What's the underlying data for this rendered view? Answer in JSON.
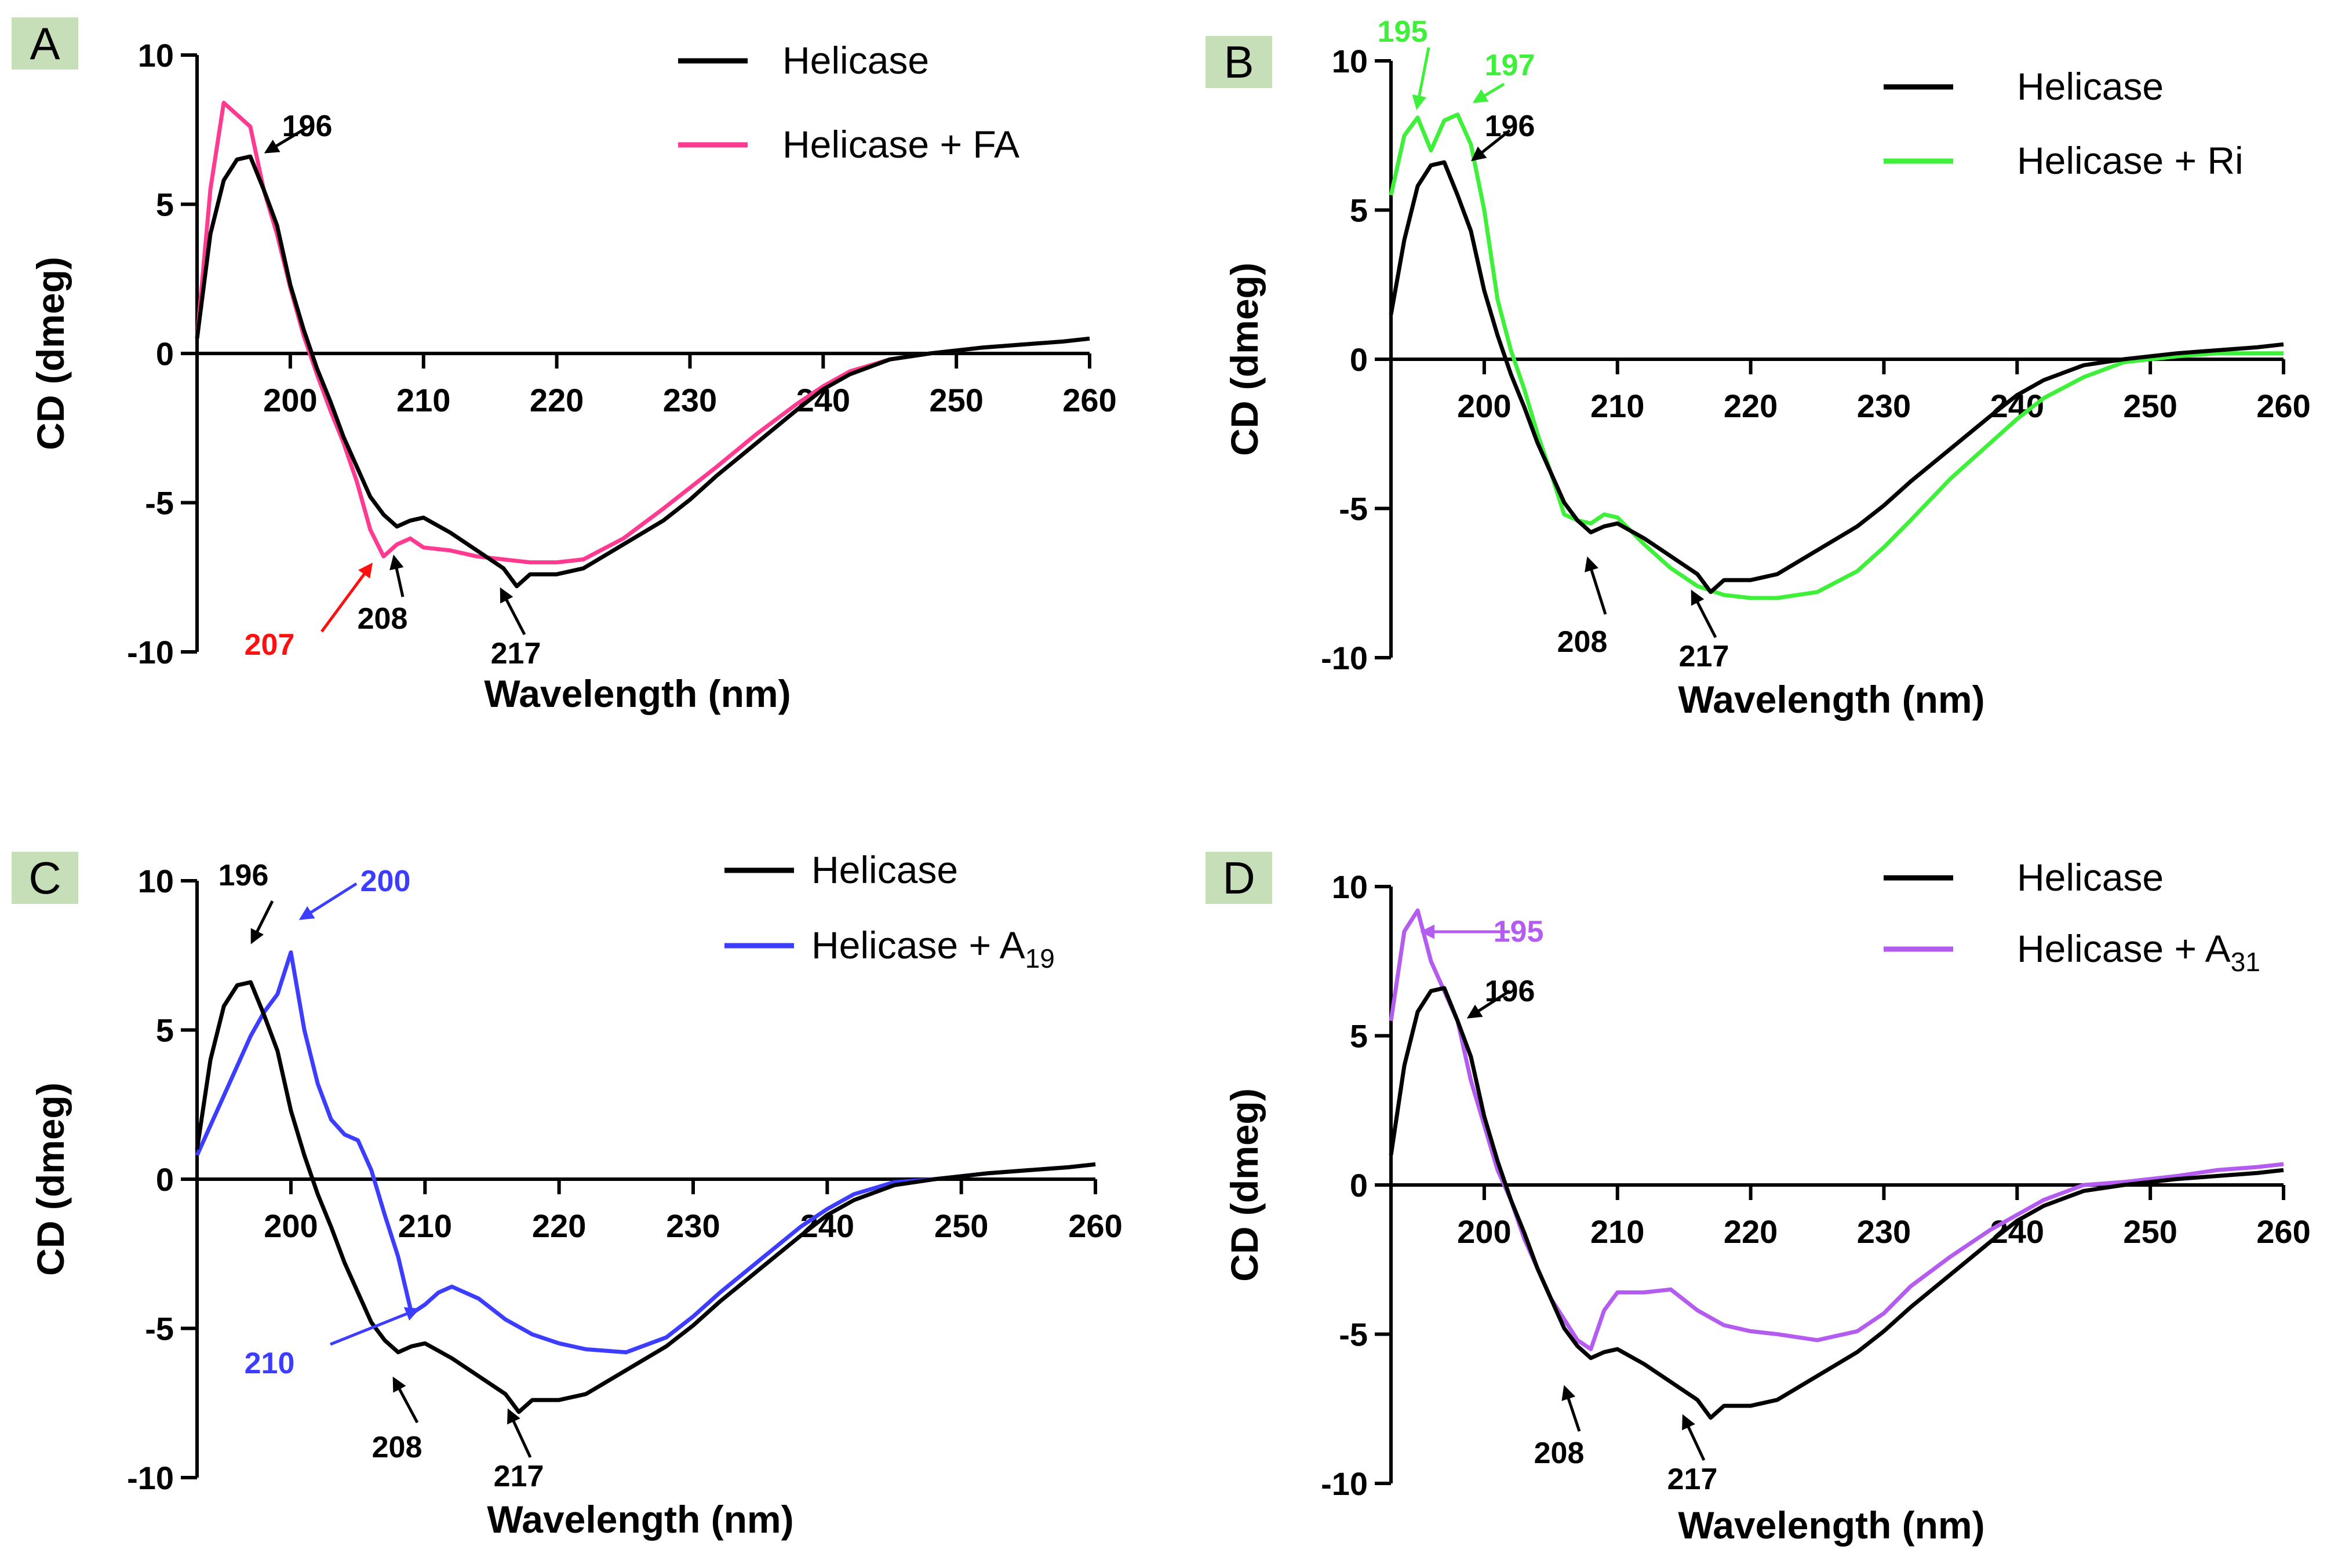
{
  "figure": {
    "colors": {
      "base": "#000000",
      "FA": "#ff3b91",
      "Ri": "#3ef03a",
      "A19": "#3d3dff",
      "A31": "#b45cf0",
      "label_bg": "#c6dfb9",
      "red": "#ff1010"
    }
  },
  "chart_data": [
    {
      "panel": "A",
      "type": "line",
      "xlabel": "Wavelength (nm)",
      "ylabel": "CD (dmeg)",
      "xlim": [
        193,
        260
      ],
      "ylim": [
        -10,
        10
      ],
      "xticks": [
        "200",
        "210",
        "220",
        "230",
        "240",
        "250",
        "260"
      ],
      "yticks": [
        "10",
        "5",
        "0",
        "-5",
        "-10"
      ],
      "series": [
        {
          "name": "Helicase",
          "color": "#000000",
          "x": [
            193,
            194,
            195,
            196,
            197,
            198,
            199,
            200,
            201,
            202,
            203,
            204,
            205,
            206,
            207,
            208,
            209,
            210,
            212,
            214,
            216,
            217,
            218,
            220,
            222,
            225,
            228,
            230,
            232,
            235,
            238,
            240,
            242,
            245,
            248,
            250,
            252,
            255,
            258,
            260
          ],
          "y": [
            0.5,
            4.0,
            5.8,
            6.5,
            6.6,
            5.5,
            4.3,
            2.3,
            0.8,
            -0.5,
            -1.6,
            -2.8,
            -3.8,
            -4.8,
            -5.4,
            -5.8,
            -5.6,
            -5.5,
            -6.0,
            -6.6,
            -7.2,
            -7.8,
            -7.4,
            -7.4,
            -7.2,
            -6.4,
            -5.6,
            -4.9,
            -4.1,
            -3.0,
            -1.9,
            -1.2,
            -0.7,
            -0.2,
            0.0,
            0.1,
            0.2,
            0.3,
            0.4,
            0.5
          ]
        },
        {
          "name": "Helicase + FA",
          "color": "#ff3b91",
          "x": [
            193,
            194,
            195,
            196,
            197,
            198,
            199,
            200,
            201,
            202,
            203,
            204,
            205,
            206,
            207,
            208,
            209,
            210,
            212,
            214,
            216,
            218,
            220,
            222,
            225,
            228,
            230,
            232,
            235,
            238,
            240,
            242,
            245,
            248,
            250,
            252,
            255,
            258,
            260
          ],
          "y": [
            0.5,
            5.5,
            8.4,
            8.0,
            7.6,
            5.5,
            4.0,
            2.2,
            0.6,
            -0.7,
            -1.9,
            -3.0,
            -4.3,
            -5.9,
            -6.8,
            -6.4,
            -6.2,
            -6.5,
            -6.6,
            -6.8,
            -6.9,
            -7.0,
            -7.0,
            -6.9,
            -6.2,
            -5.2,
            -4.5,
            -3.8,
            -2.7,
            -1.7,
            -1.1,
            -0.6,
            -0.2,
            0.0,
            0.1,
            0.2,
            0.3,
            0.4,
            0.5
          ]
        }
      ],
      "legend": [
        "Helicase",
        "Helicase + FA"
      ],
      "annotations": [
        {
          "text": "196",
          "x": 196,
          "color": "#000000"
        },
        {
          "text": "207",
          "x": 207,
          "color": "#ff1010"
        },
        {
          "text": "208",
          "x": 208,
          "color": "#000000"
        },
        {
          "text": "217",
          "x": 217,
          "color": "#000000"
        }
      ]
    },
    {
      "panel": "B",
      "type": "line",
      "xlabel": "Wavelength (nm)",
      "ylabel": "CD (dmeg)",
      "xlim": [
        193,
        260
      ],
      "ylim": [
        -10,
        10
      ],
      "xticks": [
        "200",
        "210",
        "220",
        "230",
        "240",
        "250",
        "260"
      ],
      "yticks": [
        "10",
        "5",
        "0",
        "-5",
        "-10"
      ],
      "series": [
        {
          "name": "Helicase",
          "color": "#000000",
          "x": [
            193,
            194,
            195,
            196,
            197,
            198,
            199,
            200,
            201,
            202,
            203,
            204,
            205,
            206,
            207,
            208,
            209,
            210,
            212,
            214,
            216,
            217,
            218,
            220,
            222,
            225,
            228,
            230,
            232,
            235,
            238,
            240,
            242,
            245,
            248,
            250,
            252,
            255,
            258,
            260
          ],
          "y": [
            1.5,
            4.0,
            5.8,
            6.5,
            6.6,
            5.5,
            4.3,
            2.3,
            0.8,
            -0.5,
            -1.6,
            -2.8,
            -3.8,
            -4.8,
            -5.4,
            -5.8,
            -5.6,
            -5.5,
            -6.0,
            -6.6,
            -7.2,
            -7.8,
            -7.4,
            -7.4,
            -7.2,
            -6.4,
            -5.6,
            -4.9,
            -4.1,
            -3.0,
            -1.9,
            -1.2,
            -0.7,
            -0.2,
            0.0,
            0.1,
            0.2,
            0.3,
            0.4,
            0.5
          ]
        },
        {
          "name": "Helicase + Ri",
          "color": "#3ef03a",
          "x": [
            193,
            194,
            195,
            196,
            197,
            198,
            199,
            200,
            201,
            202,
            203,
            204,
            205,
            206,
            207,
            208,
            209,
            210,
            212,
            214,
            216,
            218,
            220,
            222,
            225,
            228,
            230,
            232,
            235,
            238,
            240,
            242,
            245,
            248,
            250,
            252,
            255,
            258,
            260
          ],
          "y": [
            5.5,
            7.5,
            8.1,
            7.0,
            8.0,
            8.2,
            7.2,
            5.0,
            2.0,
            0.3,
            -1.0,
            -2.5,
            -3.8,
            -5.2,
            -5.4,
            -5.5,
            -5.2,
            -5.3,
            -6.2,
            -7.0,
            -7.6,
            -7.9,
            -8.0,
            -8.0,
            -7.8,
            -7.1,
            -6.3,
            -5.4,
            -4.0,
            -2.8,
            -2.0,
            -1.3,
            -0.6,
            -0.1,
            0.0,
            0.1,
            0.2,
            0.2,
            0.2
          ]
        }
      ],
      "legend": [
        "Helicase",
        "Helicase + Ri"
      ],
      "annotations": [
        {
          "text": "195",
          "x": 195,
          "color": "#3ef03a"
        },
        {
          "text": "197",
          "x": 197,
          "color": "#3ef03a"
        },
        {
          "text": "196",
          "x": 196,
          "color": "#000000"
        },
        {
          "text": "208",
          "x": 208,
          "color": "#000000"
        },
        {
          "text": "217",
          "x": 217,
          "color": "#000000"
        }
      ]
    },
    {
      "panel": "C",
      "type": "line",
      "xlabel": "Wavelength (nm)",
      "ylabel": "CD (dmeg)",
      "xlim": [
        193,
        260
      ],
      "ylim": [
        -10,
        10
      ],
      "xticks": [
        "200",
        "210",
        "220",
        "230",
        "240",
        "250",
        "260"
      ],
      "yticks": [
        "10",
        "5",
        "0",
        "-5",
        "-10"
      ],
      "series": [
        {
          "name": "Helicase",
          "color": "#000000",
          "x": [
            193,
            194,
            195,
            196,
            197,
            198,
            199,
            200,
            201,
            202,
            203,
            204,
            205,
            206,
            207,
            208,
            209,
            210,
            212,
            214,
            216,
            217,
            218,
            220,
            222,
            225,
            228,
            230,
            232,
            235,
            238,
            240,
            242,
            245,
            248,
            250,
            252,
            255,
            258,
            260
          ],
          "y": [
            1.0,
            4.0,
            5.8,
            6.5,
            6.6,
            5.5,
            4.3,
            2.3,
            0.8,
            -0.5,
            -1.6,
            -2.8,
            -3.8,
            -4.8,
            -5.4,
            -5.8,
            -5.6,
            -5.5,
            -6.0,
            -6.6,
            -7.2,
            -7.8,
            -7.4,
            -7.4,
            -7.2,
            -6.4,
            -5.6,
            -4.9,
            -4.1,
            -3.0,
            -1.9,
            -1.2,
            -0.7,
            -0.2,
            0.0,
            0.1,
            0.2,
            0.3,
            0.4,
            0.5
          ]
        },
        {
          "name": "Helicase + A19",
          "color": "#3d3dff",
          "x": [
            193,
            194,
            195,
            196,
            197,
            198,
            199,
            200,
            201,
            202,
            203,
            204,
            205,
            206,
            207,
            208,
            209,
            210,
            211,
            212,
            214,
            216,
            218,
            220,
            222,
            225,
            228,
            230,
            232,
            235,
            238,
            240,
            242,
            245,
            248,
            250,
            252,
            255,
            258,
            260
          ],
          "y": [
            0.8,
            1.8,
            2.8,
            3.8,
            4.8,
            5.6,
            6.2,
            7.6,
            5.0,
            3.2,
            2.0,
            1.5,
            1.3,
            0.3,
            -1.2,
            -2.6,
            -4.5,
            -4.2,
            -3.8,
            -3.6,
            -4.0,
            -4.7,
            -5.2,
            -5.5,
            -5.7,
            -5.8,
            -5.3,
            -4.6,
            -3.8,
            -2.7,
            -1.6,
            -1.0,
            -0.5,
            -0.1,
            0.0,
            0.1,
            0.2,
            0.3,
            0.4,
            0.5
          ]
        }
      ],
      "legend": [
        "Helicase",
        "Helicase + A"
      ],
      "legend_subscripts": [
        "",
        "19"
      ],
      "annotations": [
        {
          "text": "196",
          "x": 196,
          "color": "#000000"
        },
        {
          "text": "200",
          "x": 200,
          "color": "#3d3dff"
        },
        {
          "text": "210",
          "x": 210,
          "color": "#3d3dff"
        },
        {
          "text": "208",
          "x": 208,
          "color": "#000000"
        },
        {
          "text": "217",
          "x": 217,
          "color": "#000000"
        }
      ]
    },
    {
      "panel": "D",
      "type": "line",
      "xlabel": "Wavelength (nm)",
      "ylabel": "CD (dmeg)",
      "xlim": [
        193,
        260
      ],
      "ylim": [
        -10,
        10
      ],
      "xticks": [
        "200",
        "210",
        "220",
        "230",
        "240",
        "250",
        "260"
      ],
      "yticks": [
        "10",
        "5",
        "0",
        "-5",
        "-10"
      ],
      "series": [
        {
          "name": "Helicase",
          "color": "#000000",
          "x": [
            193,
            194,
            195,
            196,
            197,
            198,
            199,
            200,
            201,
            202,
            203,
            204,
            205,
            206,
            207,
            208,
            209,
            210,
            212,
            214,
            216,
            217,
            218,
            220,
            222,
            225,
            228,
            230,
            232,
            235,
            238,
            240,
            242,
            245,
            248,
            250,
            252,
            255,
            258,
            260
          ],
          "y": [
            1.0,
            4.0,
            5.8,
            6.5,
            6.6,
            5.5,
            4.3,
            2.3,
            0.8,
            -0.5,
            -1.6,
            -2.8,
            -3.8,
            -4.8,
            -5.4,
            -5.8,
            -5.6,
            -5.5,
            -6.0,
            -6.6,
            -7.2,
            -7.8,
            -7.4,
            -7.4,
            -7.2,
            -6.4,
            -5.6,
            -4.9,
            -4.1,
            -3.0,
            -1.9,
            -1.2,
            -0.7,
            -0.2,
            0.0,
            0.1,
            0.2,
            0.3,
            0.4,
            0.5
          ]
        },
        {
          "name": "Helicase + A31",
          "color": "#b45cf0",
          "x": [
            193,
            194,
            195,
            196,
            197,
            198,
            199,
            200,
            201,
            202,
            203,
            204,
            205,
            206,
            207,
            208,
            209,
            210,
            212,
            214,
            216,
            218,
            220,
            222,
            225,
            228,
            230,
            232,
            235,
            238,
            240,
            242,
            245,
            248,
            250,
            252,
            255,
            258,
            260
          ],
          "y": [
            5.5,
            8.5,
            9.2,
            7.5,
            6.5,
            5.5,
            3.5,
            2.0,
            0.5,
            -0.5,
            -1.8,
            -2.8,
            -3.8,
            -4.5,
            -5.2,
            -5.5,
            -4.2,
            -3.6,
            -3.6,
            -3.5,
            -4.2,
            -4.7,
            -4.9,
            -5.0,
            -5.2,
            -4.9,
            -4.3,
            -3.4,
            -2.4,
            -1.5,
            -1.0,
            -0.5,
            0.0,
            0.1,
            0.2,
            0.3,
            0.5,
            0.6,
            0.7
          ]
        }
      ],
      "legend": [
        "Helicase",
        "Helicase + A"
      ],
      "legend_subscripts": [
        "",
        "31"
      ],
      "annotations": [
        {
          "text": "195",
          "x": 195,
          "color": "#b45cf0"
        },
        {
          "text": "196",
          "x": 196,
          "color": "#000000"
        },
        {
          "text": "208",
          "x": 208,
          "color": "#000000"
        },
        {
          "text": "217",
          "x": 217,
          "color": "#000000"
        }
      ]
    }
  ]
}
